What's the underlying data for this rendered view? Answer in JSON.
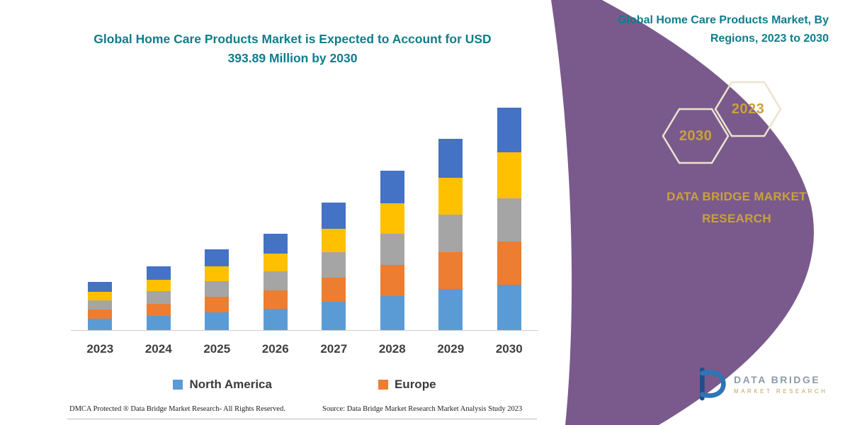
{
  "title": "Global Home Care Products Market is Expected to Account for USD 393.89 Million by 2030",
  "chart_data": {
    "type": "bar",
    "stacked": true,
    "categories": [
      "2023",
      "2024",
      "2025",
      "2026",
      "2027",
      "2028",
      "2029",
      "2030"
    ],
    "series": [
      {
        "name": "North America",
        "color": "#5B9BD5",
        "values": [
          16,
          20,
          25,
          30,
          40,
          48,
          58,
          64
        ]
      },
      {
        "name": "Europe",
        "color": "#ED7D31",
        "values": [
          13,
          17,
          22,
          26,
          34,
          44,
          52,
          61
        ]
      },
      {
        "name": "",
        "color": "#A5A5A5",
        "values": [
          13,
          18,
          22,
          27,
          36,
          44,
          53,
          61
        ]
      },
      {
        "name": "",
        "color": "#FFC000",
        "values": [
          12,
          16,
          21,
          25,
          33,
          43,
          52,
          65
        ]
      },
      {
        "name": "",
        "color": "#4472C4",
        "values": [
          14,
          19,
          24,
          28,
          37,
          46,
          55,
          63
        ]
      }
    ],
    "value_axis_visible": false,
    "note": "No value axis shown in figure; series values are relative stack heights estimated from the image"
  },
  "legend": [
    {
      "label": "North America",
      "color": "#5B9BD5"
    },
    {
      "label": "Europe",
      "color": "#ED7D31"
    }
  ],
  "footer": {
    "dmca": "DMCA Protected ® Data Bridge Market Research-  All Rights Reserved.",
    "source": "Source: Data Bridge Market Research  Market Analysis Study 2023"
  },
  "side_panel": {
    "heading": "Global Home Care Products Market, By Regions, 2023 to 2030",
    "hexagons": [
      "2030",
      "2023"
    ],
    "brand": "DATA BRIDGE MARKET RESEARCH"
  },
  "logo": {
    "name": "DATA BRIDGE",
    "tagline": "MARKET RESEARCH"
  },
  "colors": {
    "teal": "#0F7D8C",
    "purple": "#7A5A8C",
    "gold": "#C9A13B"
  }
}
